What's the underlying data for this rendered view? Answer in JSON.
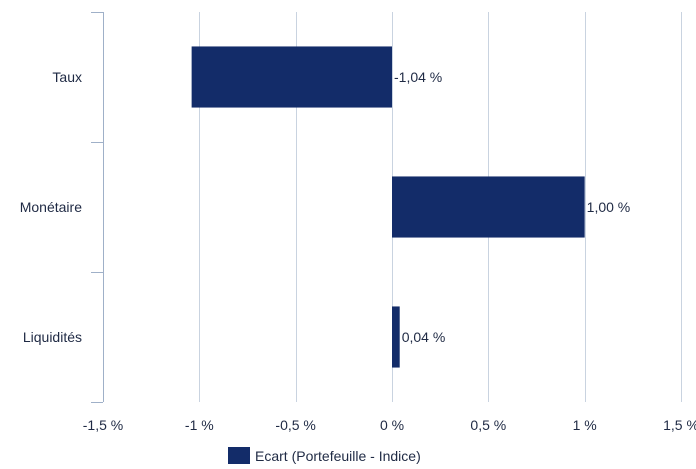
{
  "chart_data": {
    "type": "bar",
    "orientation": "horizontal",
    "categories": [
      "Taux",
      "Monétaire",
      "Liquidités"
    ],
    "series": [
      {
        "name": "Ecart (Portefeuille - Indice)",
        "values": [
          -1.04,
          1.0,
          0.04
        ],
        "data_labels": [
          "-1,04 %",
          "1,00 %",
          "0,04 %"
        ]
      }
    ],
    "xlim": [
      -1.5,
      1.5
    ],
    "x_ticks": [
      -1.5,
      -1,
      -0.5,
      0,
      0.5,
      1,
      1.5
    ],
    "x_tick_labels": [
      "-1,5 %",
      "-1 %",
      "-0,5 %",
      "0 %",
      "0,5 %",
      "1 %",
      "1,5 %"
    ],
    "grid": "vertical",
    "legend_position": "bottom",
    "colors": {
      "bar": "#132c69",
      "grid": "#c9d3e0",
      "axis": "#9fb0c8",
      "text": "#1f2a44"
    }
  }
}
